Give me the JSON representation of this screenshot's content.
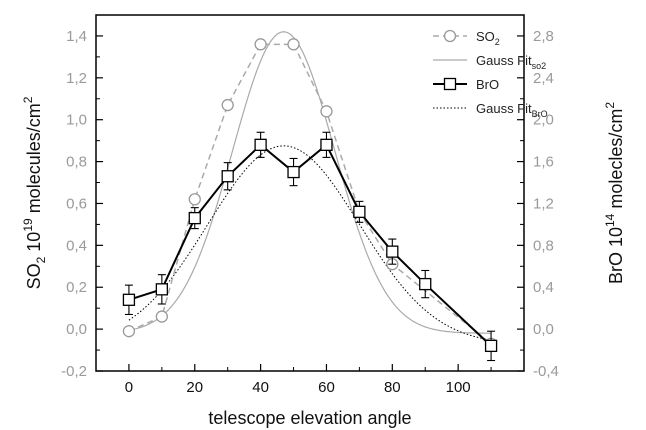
{
  "chart_data": {
    "type": "line",
    "x": [
      0,
      10,
      20,
      30,
      40,
      50,
      60,
      70,
      80,
      90,
      110
    ],
    "xlabel": "telescope elevation angle",
    "xlim": [
      -10,
      120
    ],
    "x_ticks": [
      "0",
      "20",
      "40",
      "60",
      "80",
      "100"
    ],
    "x_tick_values": [
      0,
      20,
      40,
      60,
      80,
      100
    ],
    "ylabel_left": {
      "pre": "SO",
      "sub": "2",
      "mid": " 10",
      "sup": "19",
      "post": " molecules/cm",
      "sup2": "2"
    },
    "ylim_left": [
      -0.2,
      1.5
    ],
    "y_ticks_left": [
      "-0,2",
      "0,0",
      "0,2",
      "0,4",
      "0,6",
      "0,8",
      "1,0",
      "1,2",
      "1,4"
    ],
    "y_tick_values_left": [
      -0.2,
      0.0,
      0.2,
      0.4,
      0.6,
      0.8,
      1.0,
      1.2,
      1.4
    ],
    "ylabel_right": {
      "pre": "BrO 10",
      "sup": "14",
      "post": " molecles/cm",
      "sup2": "2"
    },
    "ylim_right": [
      -0.4,
      3.0
    ],
    "y_ticks_right": [
      "-0,4",
      "0,0",
      "0,4",
      "0,8",
      "1,2",
      "1,6",
      "2,0",
      "2,4",
      "2,8"
    ],
    "y_tick_values_right": [
      -0.4,
      0.0,
      0.4,
      0.8,
      1.2,
      1.6,
      2.0,
      2.4,
      2.8
    ],
    "grid": false,
    "legend_position": "top-right",
    "series": [
      {
        "name": "SO2",
        "legend_main": "SO",
        "legend_sub": "2",
        "axis": "left",
        "marker": "circle",
        "line": "dashed",
        "color": "#aaaaaa",
        "values": [
          -0.01,
          0.06,
          0.62,
          1.07,
          1.36,
          1.36,
          1.04,
          0.56,
          0.31,
          null,
          -0.07
        ]
      },
      {
        "name": "Gauss Fit so2",
        "legend_main": "Gauss Fit",
        "legend_sub": "so2",
        "axis": "left",
        "marker": "none",
        "line": "solid",
        "color": "#aaaaaa",
        "fit": {
          "amplitude": 1.44,
          "center": 47,
          "sigma": 15.5,
          "baseline": -0.02
        }
      },
      {
        "name": "BrO",
        "legend_main": "BrO",
        "legend_sub": "",
        "axis": "right",
        "marker": "square",
        "line": "solid",
        "color": "#000000",
        "values": [
          0.28,
          0.38,
          1.06,
          1.46,
          1.76,
          1.5,
          1.76,
          1.12,
          0.74,
          0.43,
          -0.16
        ],
        "errors": [
          0.14,
          0.14,
          0.1,
          0.13,
          0.12,
          0.13,
          0.12,
          0.1,
          0.12,
          0.13,
          0.14
        ]
      },
      {
        "name": "Gauss Fit BrO",
        "legend_main": "Gauss Fit",
        "legend_sub": "BrO",
        "axis": "right",
        "marker": "none",
        "line": "dotted",
        "color": "#000000",
        "fit": {
          "amplitude": 1.9,
          "center": 47,
          "sigma": 23,
          "baseline": -0.15
        }
      }
    ]
  }
}
